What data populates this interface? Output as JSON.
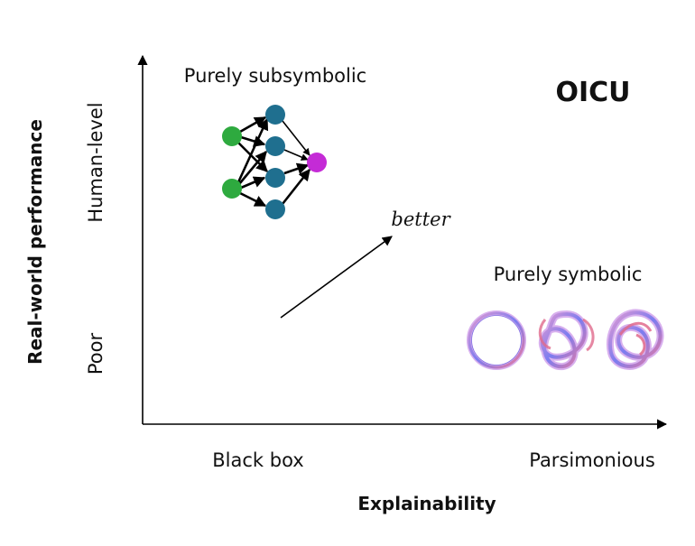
{
  "corner_label": "OICU",
  "axes": {
    "x_label": "Explainability",
    "y_label": "Real-world performance",
    "x_ticks": [
      "Black box",
      "Parsimonious"
    ],
    "y_ticks": [
      "Poor",
      "Human-level"
    ]
  },
  "regions": {
    "subsymbolic": {
      "label": "Purely subsymbolic",
      "icon": "neural-network-icon"
    },
    "symbolic": {
      "label": "Purely symbolic",
      "icons": [
        "unknot-icon",
        "trefoil-knot-icon",
        "figure-eight-knot-icon"
      ]
    }
  },
  "arrow_label": "better",
  "colors": {
    "input_node": "#2eaa3f",
    "hidden_node": "#1f6f8f",
    "output_node": "#c42bd6",
    "axis": "#000000",
    "knot_outer": "#c9a0e8",
    "knot_inner": "#4a4ee0",
    "knot_warm": "#e06a8c"
  }
}
